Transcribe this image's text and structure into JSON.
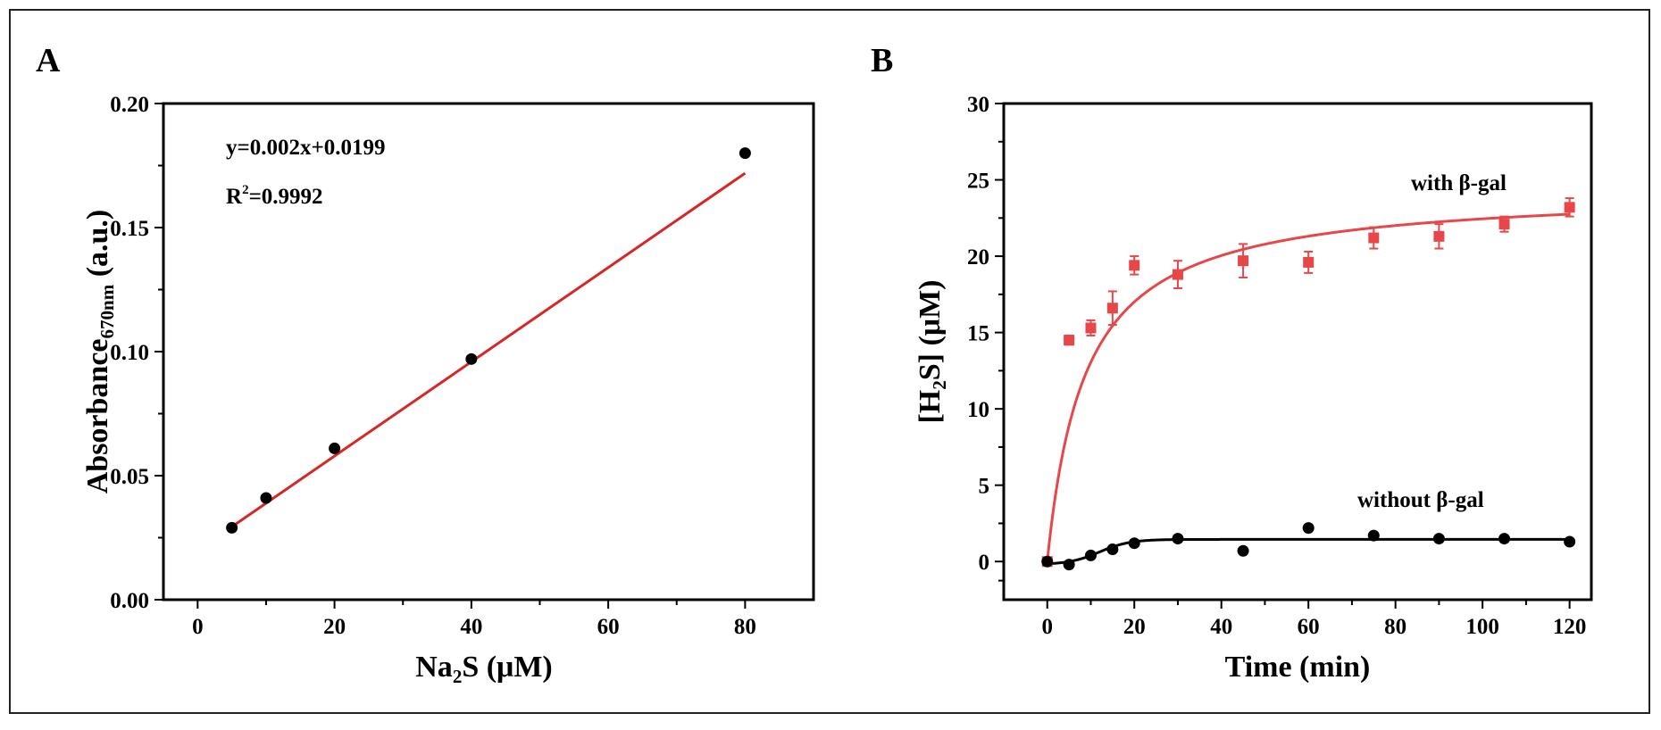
{
  "chart_data": [
    {
      "panel": "A",
      "type": "scatter",
      "xlabel": "Na",
      "xlabel_sub": "2",
      "xlabel_rest": "S (μM)",
      "ylabel": "Absorbance",
      "ylabel_sub": "670nm",
      "ylabel_rest": " (a.u.)",
      "xlim": [
        -5,
        90
      ],
      "ylim": [
        0,
        0.2
      ],
      "x_ticks": [
        0,
        20,
        40,
        60,
        80
      ],
      "y_ticks": [
        0.0,
        0.05,
        0.1,
        0.15,
        0.2
      ],
      "y_tick_labels": [
        "0.00",
        "0.05",
        "0.10",
        "0.15",
        "0.20"
      ],
      "grid": false,
      "series": [
        {
          "color": "#000000",
          "x": [
            5,
            10,
            20,
            40,
            80
          ],
          "y": [
            0.029,
            0.041,
            0.061,
            0.097,
            0.18
          ]
        }
      ],
      "fit": {
        "slope": 0.0019,
        "intercept": 0.0199,
        "x_range": [
          5,
          80
        ],
        "color": "#d62728"
      },
      "annotations": {
        "equation": "y=0.002x+0.0199",
        "r2_prefix": "R",
        "r2_sup": "2",
        "r2_value": "=0.9992"
      }
    },
    {
      "panel": "B",
      "type": "scatter",
      "xlabel": "Time (min)",
      "ylabel_pre": "[H",
      "ylabel_sub": "2",
      "ylabel_rest": "S] (μM)",
      "xlim": [
        -10,
        125
      ],
      "ylim": [
        -2.5,
        30
      ],
      "x_ticks": [
        0,
        20,
        40,
        60,
        80,
        100,
        120
      ],
      "y_ticks": [
        0,
        5,
        10,
        15,
        20,
        25,
        30
      ],
      "grid": false,
      "series": [
        {
          "name": "with β-gal",
          "color": "#e8474a",
          "marker": "square",
          "x": [
            0,
            5,
            10,
            15,
            20,
            30,
            45,
            60,
            75,
            90,
            105,
            120
          ],
          "y": [
            0,
            14.5,
            15.3,
            16.6,
            19.4,
            18.8,
            19.7,
            19.6,
            21.2,
            21.3,
            22.1,
            23.2
          ],
          "err": [
            0,
            0.3,
            0.5,
            1.1,
            0.6,
            0.9,
            1.1,
            0.7,
            0.7,
            0.8,
            0.5,
            0.6
          ]
        },
        {
          "name": "without β-gal",
          "color": "#000000",
          "marker": "circle",
          "x": [
            0,
            5,
            10,
            15,
            20,
            30,
            45,
            60,
            75,
            90,
            105,
            120
          ],
          "y": [
            0,
            -0.2,
            0.4,
            0.8,
            1.2,
            1.5,
            0.7,
            2.2,
            1.7,
            1.5,
            1.5,
            1.3
          ],
          "err": [
            0,
            0,
            0,
            0,
            0,
            0,
            0,
            0,
            0,
            0,
            0,
            0
          ]
        }
      ],
      "fit_curves": [
        {
          "series": "with β-gal",
          "color": "#e8474a",
          "model": "hyperbolic",
          "a": 24.4,
          "k": 8.7
        },
        {
          "series": "without β-gal",
          "color": "#000000",
          "model": "sigmoid",
          "a": 1.45,
          "t_half": 12,
          "w": 3.5,
          "offset": -0.2
        }
      ]
    }
  ]
}
